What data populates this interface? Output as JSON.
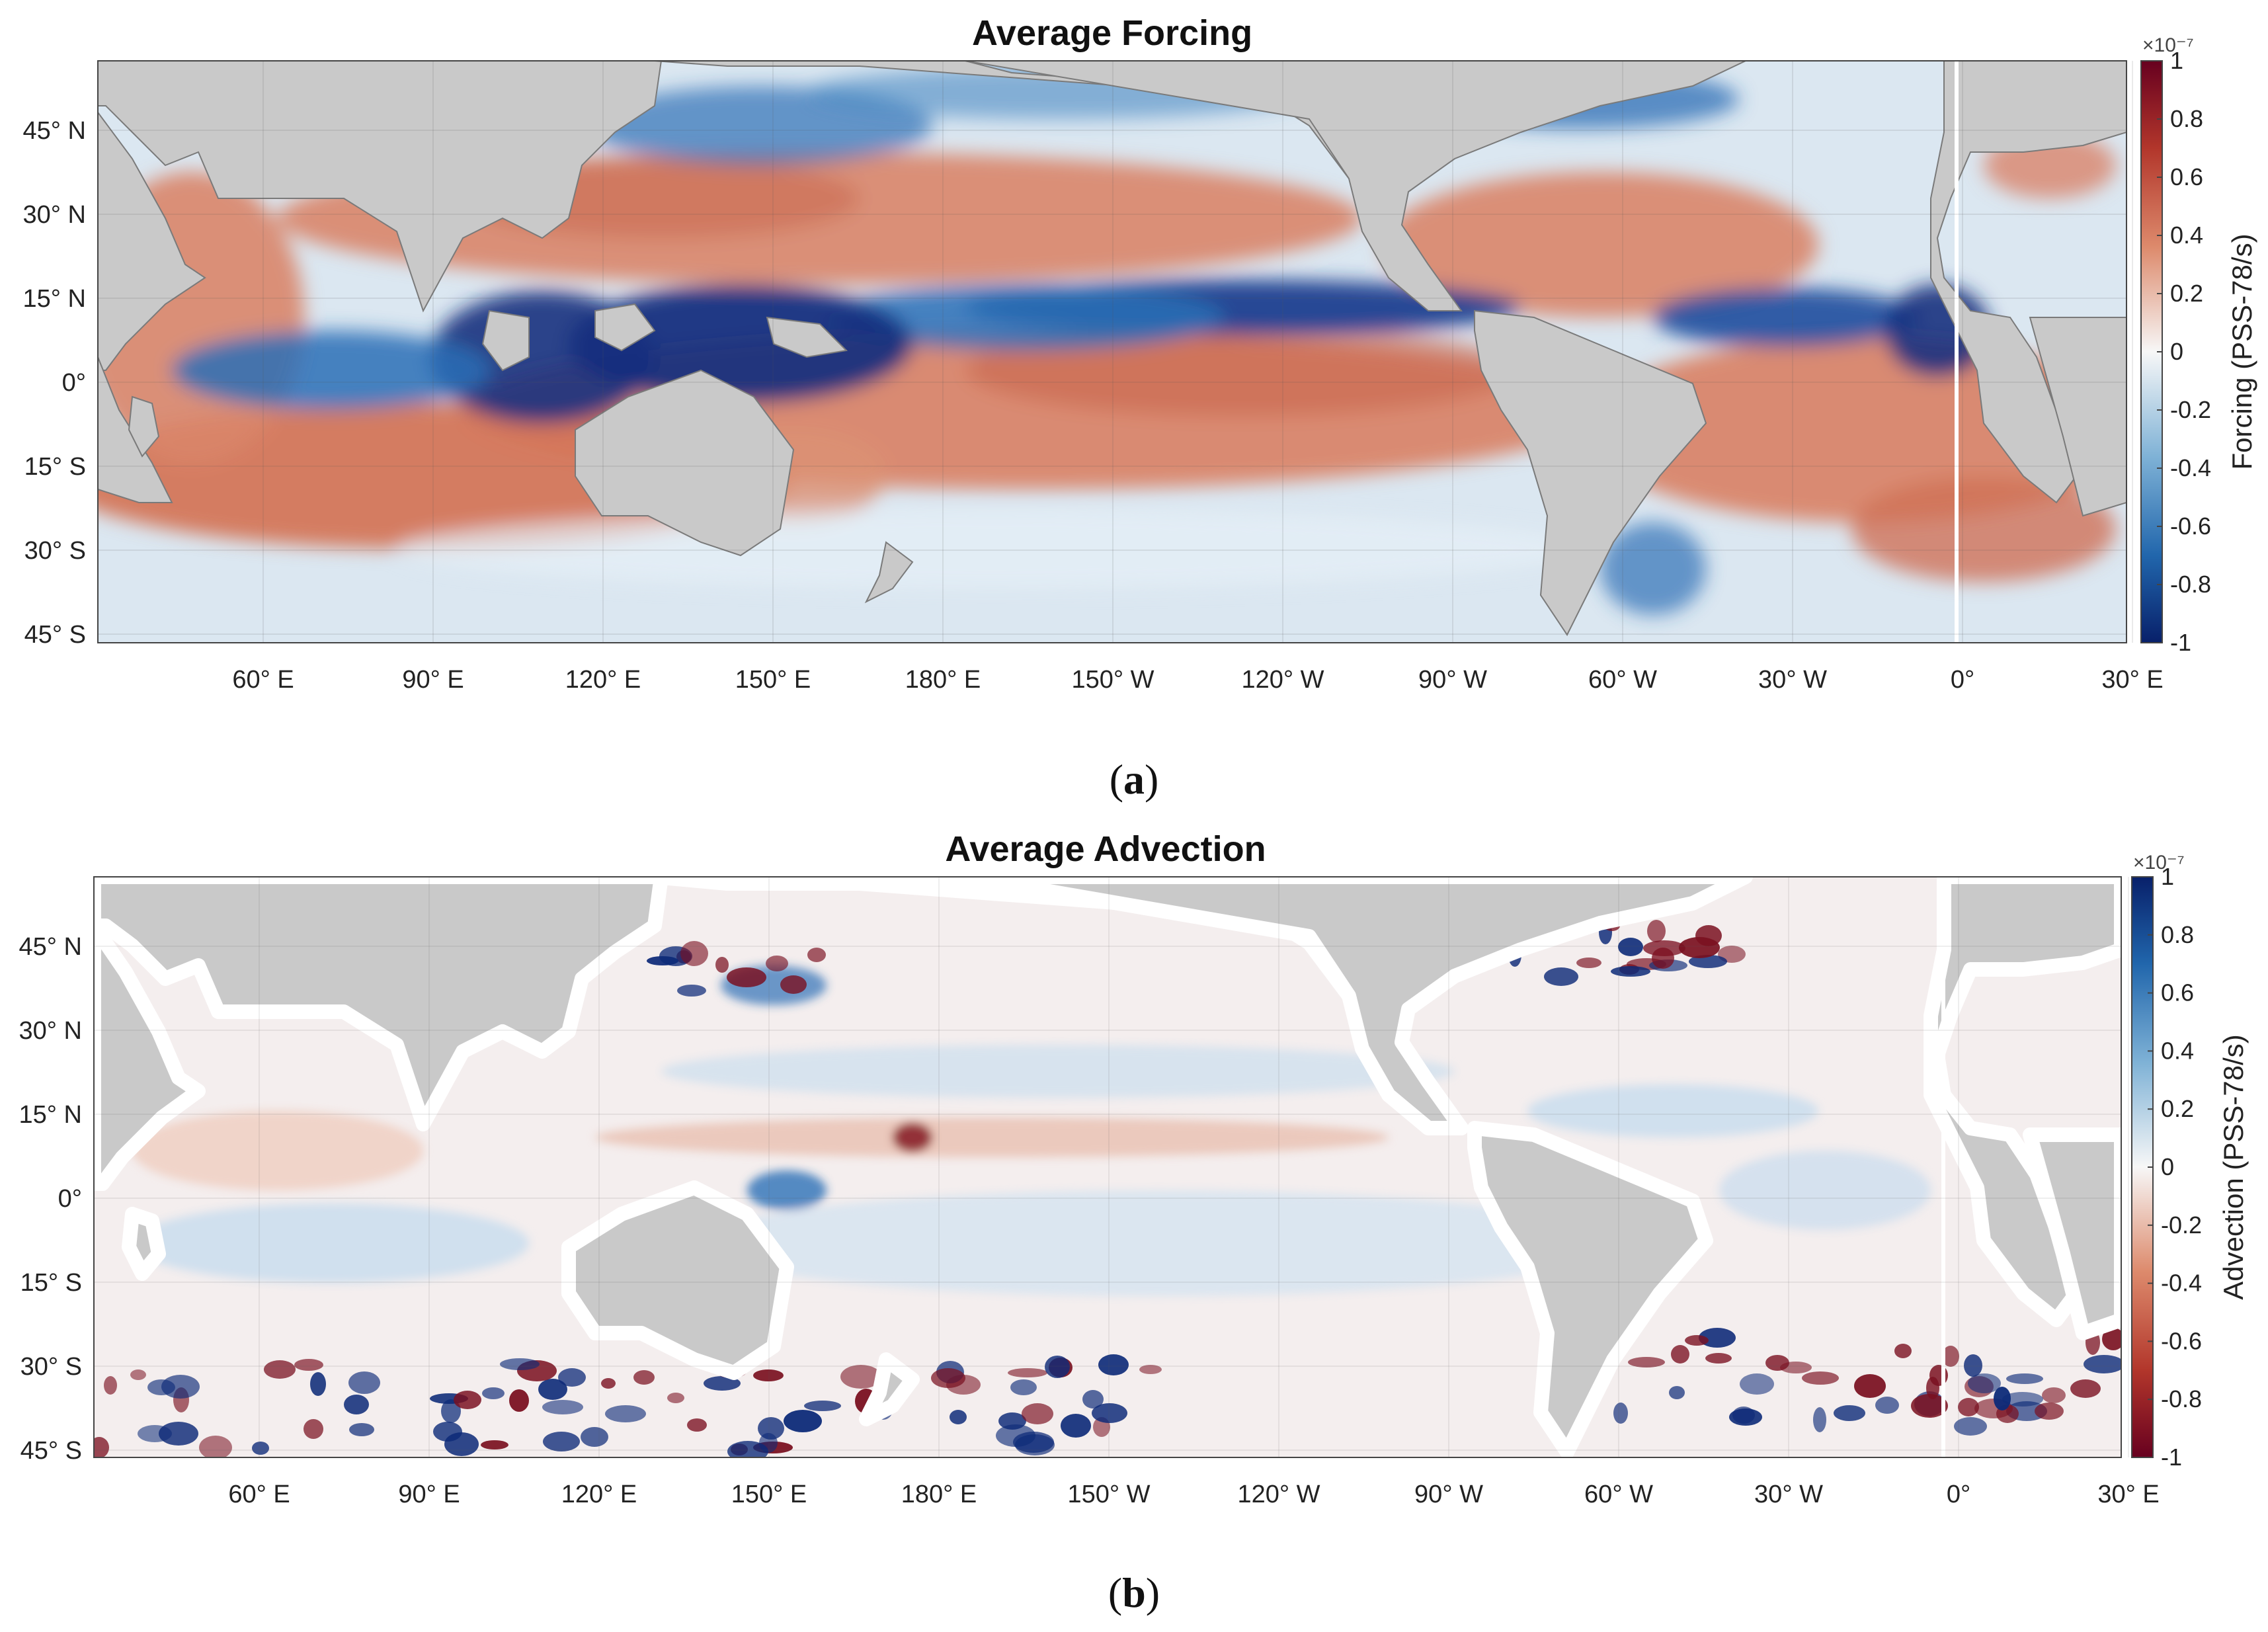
{
  "colors": {
    "land": "#c9c9c9",
    "red_strong": "#67001f",
    "red": "#c65a3e",
    "white": "#f7f7f7",
    "blue": "#2c6fb6",
    "blue_strong": "#08206a"
  },
  "panels": [
    {
      "label_open": "(",
      "label_letter": "a",
      "label_close": ")",
      "colormap": "white-to-red-for-positive",
      "chart_data": {
        "type": "heatmap",
        "title": "Average Forcing",
        "colorbar_label": "Forcing (PSS-78/s)",
        "colorbar_exponent": "×10⁻⁷",
        "colorbar_ticks": [
          "1",
          "0.8",
          "0.6",
          "0.4",
          "0.2",
          "0",
          "-0.2",
          "-0.4",
          "-0.6",
          "-0.8",
          "-1"
        ],
        "clim": [
          -1,
          1
        ],
        "x_ticks": [
          "60° E",
          "90° E",
          "120° E",
          "150° E",
          "180° E",
          "150° W",
          "120° W",
          "90° W",
          "60° W",
          "30° W",
          "0°",
          "30° E"
        ],
        "y_ticks": [
          "45° N",
          "30° N",
          "15° N",
          "0°",
          "15° S",
          "30° S",
          "45° S"
        ],
        "grid": true,
        "legend_position": "right"
      }
    },
    {
      "label_open": "(",
      "label_letter": "b",
      "label_close": ")",
      "colormap": "white-to-blue-for-positive",
      "chart_data": {
        "type": "heatmap",
        "title": "Average Advection",
        "colorbar_label": "Advection (PSS-78/s)",
        "colorbar_exponent": "×10⁻⁷",
        "colorbar_ticks": [
          "1",
          "0.8",
          "0.6",
          "0.4",
          "0.2",
          "0",
          "-0.2",
          "-0.4",
          "-0.6",
          "-0.8",
          "-1"
        ],
        "clim": [
          -1,
          1
        ],
        "x_ticks": [
          "60° E",
          "90° E",
          "120° E",
          "150° E",
          "180° E",
          "150° W",
          "120° W",
          "90° W",
          "60° W",
          "30° W",
          "0°",
          "30° E"
        ],
        "y_ticks": [
          "45° N",
          "30° N",
          "15° N",
          "0°",
          "15° S",
          "30° S",
          "45° S"
        ],
        "grid": true,
        "legend_position": "right"
      }
    }
  ]
}
